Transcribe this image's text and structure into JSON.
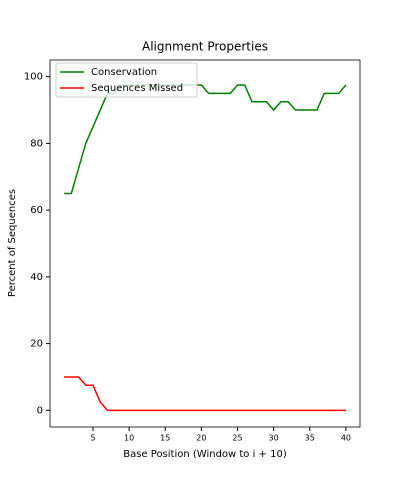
{
  "chart_data": {
    "type": "line",
    "title": "Alignment Properties",
    "xlabel": "Base Position (Window to i + 10)",
    "ylabel": "Percent of Sequences",
    "x": [
      1,
      2,
      3,
      4,
      5,
      6,
      7,
      8,
      9,
      10,
      11,
      12,
      13,
      14,
      15,
      16,
      17,
      18,
      19,
      20,
      21,
      22,
      23,
      24,
      25,
      26,
      27,
      28,
      29,
      30,
      31,
      32,
      33,
      34,
      35,
      36,
      37,
      38,
      39,
      40
    ],
    "series": [
      {
        "name": "Conservation",
        "color": "#008000",
        "values": [
          65,
          65,
          72.5,
          80,
          85,
          90,
          95,
          95,
          97.5,
          97.5,
          97.5,
          97.5,
          97.5,
          97.5,
          97.5,
          97.5,
          97.5,
          97.5,
          97.5,
          97.5,
          95,
          95,
          95,
          95,
          97.5,
          97.5,
          92.5,
          92.5,
          92.5,
          90,
          92.5,
          92.5,
          90,
          90,
          90,
          90,
          95,
          95,
          95,
          97.5
        ]
      },
      {
        "name": "Sequences Missed",
        "color": "#ff0000",
        "values": [
          10,
          10,
          10,
          7.5,
          7.5,
          2.5,
          0,
          0,
          0,
          0,
          0,
          0,
          0,
          0,
          0,
          0,
          0,
          0,
          0,
          0,
          0,
          0,
          0,
          0,
          0,
          0,
          0,
          0,
          0,
          0,
          0,
          0,
          0,
          0,
          0,
          0,
          0,
          0,
          0,
          0
        ]
      }
    ],
    "xlim": [
      -0.95,
      41.95
    ],
    "xticks": [
      5,
      10,
      15,
      20,
      25,
      30,
      35,
      40
    ],
    "ylim": [
      -5,
      105
    ],
    "yticks": [
      0,
      20,
      40,
      60,
      80,
      100
    ],
    "legend": "upper left"
  }
}
